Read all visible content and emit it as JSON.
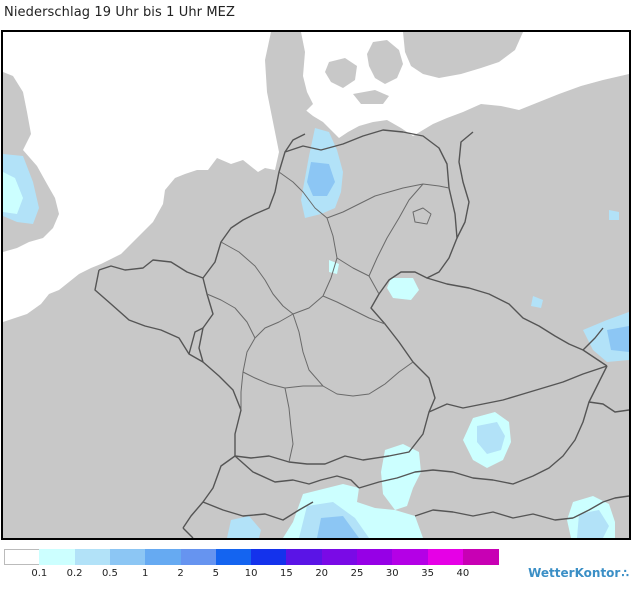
{
  "map": {
    "title": "Niederschlag 19 Uhr bis 1 Uhr MEZ",
    "land_color": "#c8c8c8",
    "sea_color": "#ffffff",
    "border_color": "#555555"
  },
  "legend": {
    "bins": [
      {
        "label": "",
        "color": "#ffffff"
      },
      {
        "label": "0.1",
        "color": "#ccffff"
      },
      {
        "label": "0.2",
        "color": "#b2e2f8"
      },
      {
        "label": "0.5",
        "color": "#8cc6f4"
      },
      {
        "label": "1",
        "color": "#66aaf2"
      },
      {
        "label": "2",
        "color": "#6694f0"
      },
      {
        "label": "5",
        "color": "#1464f0"
      },
      {
        "label": "10",
        "color": "#1432ec"
      },
      {
        "label": "15",
        "color": "#5a14e6"
      },
      {
        "label": "20",
        "color": "#7a0ae6"
      },
      {
        "label": "25",
        "color": "#9600e6"
      },
      {
        "label": "30",
        "color": "#b400e6"
      },
      {
        "label": "35",
        "color": "#e600e6"
      },
      {
        "label": "40",
        "color": "#c800b4"
      }
    ]
  },
  "brand": {
    "name": "WetterKontor",
    "icon": "rain-drops-icon"
  }
}
